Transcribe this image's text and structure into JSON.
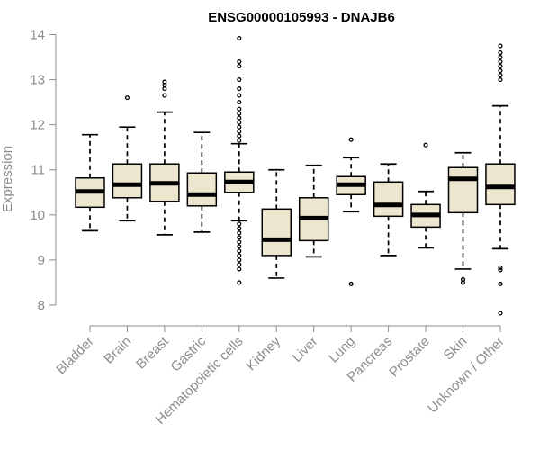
{
  "chart_data": {
    "type": "boxplot",
    "title": "ENSG00000105993 - DNAJB6",
    "xlabel": "",
    "ylabel": "Expression",
    "ylim": [
      7.8,
      14.05
    ],
    "yticks": [
      8,
      9,
      10,
      11,
      12,
      13,
      14
    ],
    "box_color": "#ece6cf",
    "categories": [
      "Bladder",
      "Brain",
      "Breast",
      "Gastric",
      "Hematopoietic cells",
      "Kidney",
      "Liver",
      "Lung",
      "Pancreas",
      "Prostate",
      "Skin",
      "Unknown / Other"
    ],
    "boxes": [
      {
        "whisker_low": 9.65,
        "q1": 10.17,
        "median": 10.52,
        "q3": 10.82,
        "whisker_high": 11.78,
        "outliers": []
      },
      {
        "whisker_low": 9.87,
        "q1": 10.38,
        "median": 10.67,
        "q3": 11.13,
        "whisker_high": 11.95,
        "outliers": [
          12.6
        ]
      },
      {
        "whisker_low": 9.56,
        "q1": 10.3,
        "median": 10.7,
        "q3": 11.13,
        "whisker_high": 12.28,
        "outliers": [
          12.65,
          12.8,
          12.88,
          12.95
        ]
      },
      {
        "whisker_low": 9.62,
        "q1": 10.2,
        "median": 10.45,
        "q3": 10.93,
        "whisker_high": 11.83,
        "outliers": []
      },
      {
        "whisker_low": 9.87,
        "q1": 10.5,
        "median": 10.73,
        "q3": 10.95,
        "whisker_high": 11.58,
        "outliers": [
          8.5,
          8.8,
          8.9,
          9.0,
          9.1,
          9.2,
          9.3,
          9.4,
          9.5,
          9.6,
          9.7,
          9.8,
          11.65,
          11.75,
          11.85,
          11.95,
          12.05,
          12.15,
          12.25,
          12.35,
          12.5,
          12.65,
          12.8,
          13.0,
          13.3,
          13.4,
          13.92
        ]
      },
      {
        "whisker_low": 8.6,
        "q1": 9.1,
        "median": 9.45,
        "q3": 10.13,
        "whisker_high": 11.0,
        "outliers": []
      },
      {
        "whisker_low": 9.07,
        "q1": 9.43,
        "median": 9.93,
        "q3": 10.38,
        "whisker_high": 11.1,
        "outliers": []
      },
      {
        "whisker_low": 10.07,
        "q1": 10.45,
        "median": 10.67,
        "q3": 10.85,
        "whisker_high": 11.27,
        "outliers": [
          8.47,
          11.67
        ]
      },
      {
        "whisker_low": 9.1,
        "q1": 9.97,
        "median": 10.22,
        "q3": 10.73,
        "whisker_high": 11.13,
        "outliers": []
      },
      {
        "whisker_low": 9.27,
        "q1": 9.73,
        "median": 10.0,
        "q3": 10.23,
        "whisker_high": 10.52,
        "outliers": [
          11.55
        ]
      },
      {
        "whisker_low": 8.8,
        "q1": 10.05,
        "median": 10.8,
        "q3": 11.05,
        "whisker_high": 11.38,
        "outliers": [
          8.5,
          8.57
        ]
      },
      {
        "whisker_low": 9.25,
        "q1": 10.23,
        "median": 10.62,
        "q3": 11.13,
        "whisker_high": 12.42,
        "outliers": [
          7.82,
          8.47,
          8.78,
          8.83,
          13.0,
          13.1,
          13.2,
          13.3,
          13.4,
          13.5,
          13.6,
          13.75
        ]
      }
    ]
  }
}
